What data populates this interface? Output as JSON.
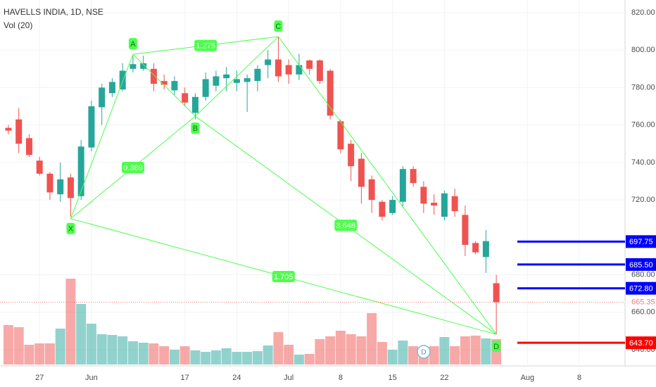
{
  "chart_data": {
    "type": "candlestick",
    "title": "HAVELLS INDIA, 1D, NSE",
    "volume_title": "Vol (20)",
    "up_color": "#26a69a",
    "down_color": "#ef5350",
    "open": [
      758.5,
      763,
      753,
      741,
      734,
      723,
      732,
      722,
      748,
      769.5,
      777,
      779,
      790,
      790,
      790,
      783.5,
      778.5,
      777,
      766.5,
      775,
      781,
      785,
      782.5,
      783,
      783.5,
      792,
      795,
      792,
      787,
      794.5,
      794.5,
      789,
      762,
      750,
      742,
      731,
      719,
      713,
      719,
      736.5,
      727,
      718.5,
      711,
      722,
      712,
      697,
      689.5,
      675.5
    ],
    "high": [
      760,
      769,
      755,
      743,
      735,
      740,
      734,
      752,
      773,
      782,
      785,
      793,
      797,
      797,
      793,
      787,
      786,
      780,
      777,
      788,
      789,
      791,
      789,
      787,
      792,
      800,
      807,
      795,
      798,
      795,
      795,
      790,
      763,
      752,
      745,
      733,
      720,
      722,
      738,
      738,
      730,
      723,
      725,
      726,
      717,
      698,
      704,
      680
    ],
    "low": [
      755,
      745,
      743,
      733,
      720,
      719,
      711,
      720,
      746,
      760,
      775,
      778,
      788,
      789,
      778,
      779,
      776,
      770,
      763,
      773,
      778,
      778,
      778,
      767,
      778,
      785,
      783,
      782,
      784,
      787,
      782,
      763,
      745,
      730,
      718,
      713,
      709,
      712,
      716,
      727,
      713,
      712,
      709,
      711,
      690,
      691,
      681,
      648
    ],
    "close": [
      757,
      750,
      744,
      734,
      724,
      731,
      721,
      748.5,
      770,
      780,
      783,
      789,
      792.5,
      793,
      782,
      781.5,
      783.5,
      772,
      775,
      784.5,
      786,
      787,
      784.5,
      785,
      790,
      795,
      786,
      787,
      792,
      790,
      783.5,
      765,
      747,
      738,
      727,
      720,
      711,
      720,
      736.5,
      729,
      718,
      717,
      723.5,
      714,
      696,
      692,
      698,
      665.35
    ],
    "volume": [
      56,
      53,
      28,
      30,
      30,
      51,
      122,
      86,
      58,
      43,
      42,
      40,
      33,
      31,
      30,
      26,
      21,
      26,
      20,
      18,
      20,
      23,
      18,
      18,
      19,
      27,
      46,
      28,
      14,
      15,
      36,
      40,
      48,
      43,
      40,
      73,
      32,
      21,
      34,
      26,
      24,
      26,
      39,
      26,
      40,
      41,
      37,
      36
    ],
    "volume_lim": [
      0,
      130
    ],
    "ylim": [
      640,
      820
    ],
    "yticks": [
      {
        "value": 820,
        "label": "820.00"
      },
      {
        "value": 800,
        "label": "800.00"
      },
      {
        "value": 780,
        "label": "780.00"
      },
      {
        "value": 760,
        "label": "760.00"
      },
      {
        "value": 740,
        "label": "740.00"
      },
      {
        "value": 720,
        "label": "720.00"
      },
      {
        "value": 680,
        "label": "680.00"
      },
      {
        "value": 660,
        "label": "660.00"
      },
      {
        "value": 640,
        "label": "640.00"
      }
    ],
    "xlim": [
      -0.81,
      59.4
    ],
    "xticks": [
      {
        "value": 3,
        "label": "27"
      },
      {
        "value": 8,
        "label": "Jun"
      },
      {
        "value": 17,
        "label": "17"
      },
      {
        "value": 22,
        "label": "24"
      },
      {
        "value": 27,
        "label": "Jul"
      },
      {
        "value": 32,
        "label": "8"
      },
      {
        "value": 37,
        "label": "15"
      },
      {
        "value": 42,
        "label": "22"
      },
      {
        "value": 50,
        "label": "Aug"
      },
      {
        "value": 55,
        "label": "8"
      }
    ],
    "pattern_color": "#4cff4c",
    "pattern_points": [
      {
        "label": "X",
        "index": 6,
        "price": 710
      },
      {
        "label": "A",
        "index": 12,
        "price": 797.8
      },
      {
        "label": "B",
        "index": 18,
        "price": 764.7
      },
      {
        "label": "C",
        "index": 26,
        "price": 807.2
      },
      {
        "label": "D",
        "index": 47,
        "price": 648.2
      }
    ],
    "ratios": [
      1.275,
      0.389,
      3.648,
      1.705
    ],
    "price_lines": [
      {
        "value": 697.75,
        "label": "697.75",
        "color": "#0000ff"
      },
      {
        "value": 685.5,
        "label": "685.50",
        "color": "#0000ff"
      },
      {
        "value": 672.8,
        "label": "672.80",
        "color": "#0000ff"
      },
      {
        "value": 643.7,
        "label": "643.70",
        "color": "#ff0000"
      }
    ],
    "last_price": {
      "value": 665.35,
      "label": "665.35",
      "color": "#f07b80"
    },
    "dividend_marker": "D"
  }
}
